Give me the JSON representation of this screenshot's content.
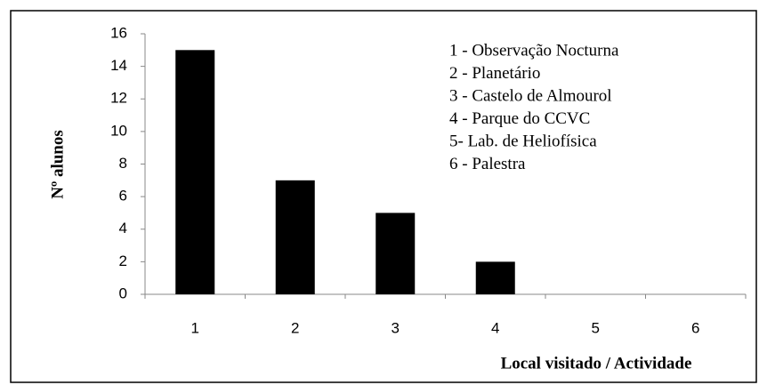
{
  "chart_data": {
    "type": "bar",
    "categories": [
      "1",
      "2",
      "3",
      "4",
      "5",
      "6"
    ],
    "values": [
      15,
      7,
      5,
      2,
      0,
      0
    ],
    "color": "#000000",
    "ylim": [
      0,
      16
    ],
    "yticks": [
      0,
      2,
      4,
      6,
      8,
      10,
      12,
      14,
      16
    ],
    "grid": false,
    "y_label": "Nº alunos",
    "x_label": "Local visitado / Actividade",
    "annotations": [
      "1 - Observação Nocturna",
      "2 - Planetário",
      "3 - Castelo de Almourol",
      "4 - Parque do CCVC",
      "5- Lab. de Heliofísica",
      "6 - Palestra"
    ]
  }
}
